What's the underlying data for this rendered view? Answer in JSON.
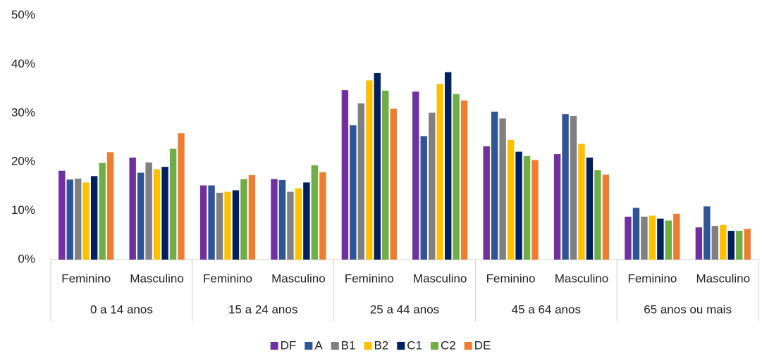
{
  "chart_data": {
    "type": "bar",
    "categories": [
      "Feminino",
      "Masculino",
      "Feminino",
      "Masculino",
      "Feminino",
      "Masculino",
      "Feminino",
      "Masculino",
      "Feminino",
      "Masculino"
    ],
    "groups": [
      "0 a 14 anos",
      "15 a 24 anos",
      "25 a 44 anos",
      "45 a 64 anos",
      "65 anos ou mais"
    ],
    "series": [
      {
        "name": "DF",
        "color": "#7030a0",
        "values": [
          18.2,
          20.9,
          15.2,
          16.5,
          34.7,
          34.4,
          23.2,
          21.6,
          8.8,
          6.6
        ]
      },
      {
        "name": "A",
        "color": "#2f5597",
        "values": [
          16.4,
          17.8,
          15.2,
          16.3,
          27.5,
          25.3,
          30.3,
          29.8,
          10.6,
          10.9
        ]
      },
      {
        "name": "B1",
        "color": "#808080",
        "values": [
          16.6,
          19.9,
          13.7,
          13.9,
          32.0,
          30.1,
          28.9,
          29.4,
          8.8,
          6.9
        ]
      },
      {
        "name": "B2",
        "color": "#ffc000",
        "values": [
          15.8,
          18.5,
          13.9,
          14.6,
          36.7,
          36.0,
          24.5,
          23.7,
          9.0,
          7.1
        ]
      },
      {
        "name": "C1",
        "color": "#002060",
        "values": [
          17.1,
          19.0,
          14.2,
          15.8,
          38.2,
          38.4,
          22.1,
          20.9,
          8.4,
          5.9
        ]
      },
      {
        "name": "C2",
        "color": "#70ad47",
        "values": [
          19.8,
          22.7,
          16.5,
          19.3,
          34.6,
          33.9,
          21.2,
          18.3,
          8.0,
          5.9
        ]
      },
      {
        "name": "DE",
        "color": "#ed7d31",
        "values": [
          22.0,
          25.9,
          17.3,
          17.9,
          30.9,
          32.6,
          20.4,
          17.4,
          9.4,
          6.3
        ]
      }
    ],
    "ylim": [
      0,
      50
    ],
    "yticks": [
      {
        "value": 0,
        "label": "0%"
      },
      {
        "value": 10,
        "label": "10%"
      },
      {
        "value": 20,
        "label": "20%"
      },
      {
        "value": 30,
        "label": "30%"
      },
      {
        "value": 40,
        "label": "40%"
      },
      {
        "value": 50,
        "label": "50%"
      }
    ],
    "grid": false,
    "legend": "bottom"
  }
}
